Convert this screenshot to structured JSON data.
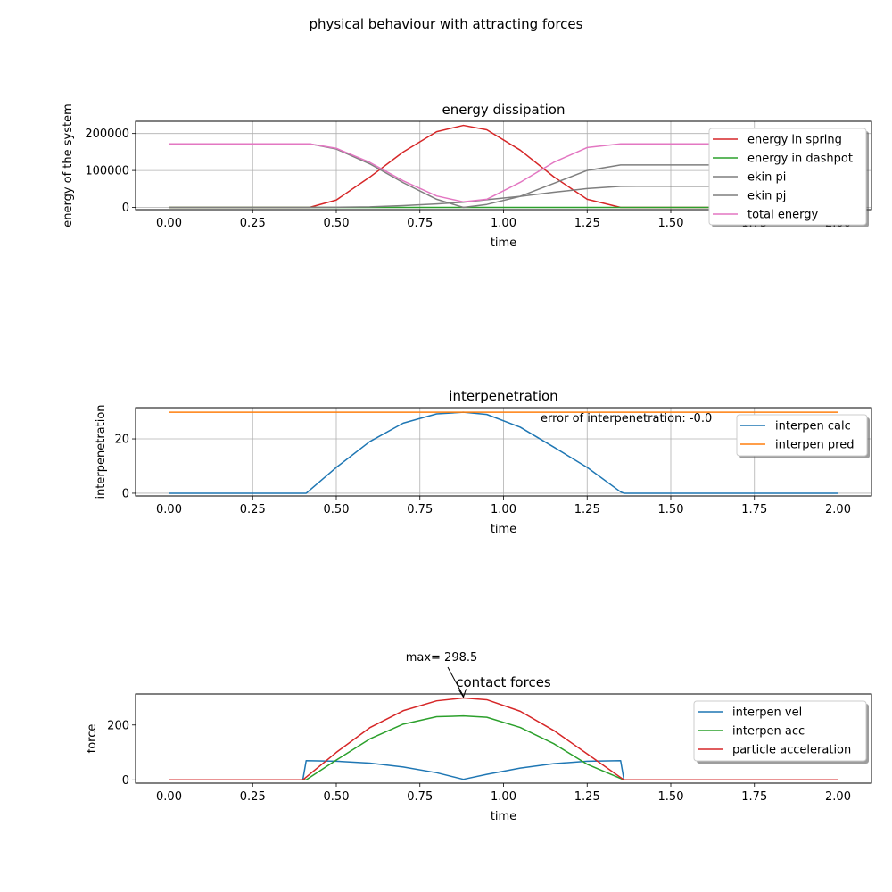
{
  "figure": {
    "title": "physical behaviour with attracting forces"
  },
  "chart_data": [
    {
      "type": "line",
      "title": "energy dissipation",
      "xlabel": "time",
      "ylabel": "energy of the system",
      "xlim": [
        -0.1,
        2.1
      ],
      "ylim": [
        -6000,
        233000
      ],
      "xticks": [
        0.0,
        0.25,
        0.5,
        0.75,
        1.0,
        1.25,
        1.5,
        1.75,
        2.0
      ],
      "xtick_labels": [
        "0.00",
        "0.25",
        "0.50",
        "0.75",
        "1.00",
        "1.25",
        "1.50",
        "1.75",
        "2.00"
      ],
      "yticks": [
        0,
        100000,
        200000
      ],
      "ytick_labels": [
        "0",
        "100000",
        "200000"
      ],
      "grid": true,
      "legend": "upper right",
      "series": [
        {
          "name": "energy in spring",
          "color": "#d62728",
          "x": [
            0,
            0.4,
            0.42,
            0.5,
            0.6,
            0.7,
            0.8,
            0.88,
            0.95,
            1.05,
            1.15,
            1.25,
            1.35,
            1.37,
            2.0
          ],
          "y": [
            0,
            0,
            0,
            20000,
            82000,
            150000,
            205000,
            222000,
            210000,
            155000,
            83000,
            22000,
            0,
            0,
            0
          ]
        },
        {
          "name": "energy in dashpot",
          "color": "#2ca02c",
          "x": [
            0,
            2.0
          ],
          "y": [
            0,
            0
          ]
        },
        {
          "name": "ekin pi",
          "color": "#7f7f7f",
          "x": [
            0,
            0.4,
            0.5,
            0.6,
            0.7,
            0.8,
            0.88,
            0.95,
            1.05,
            1.15,
            1.25,
            1.35,
            1.4,
            2.0
          ],
          "y": [
            0,
            0,
            400,
            1500,
            5000,
            9500,
            14000,
            21000,
            30000,
            41000,
            51000,
            57000,
            57500,
            57500
          ]
        },
        {
          "name": "ekin pj",
          "color": "#7f7f7f",
          "x": [
            0,
            0.42,
            0.5,
            0.6,
            0.7,
            0.8,
            0.88,
            0.95,
            1.05,
            1.15,
            1.25,
            1.35,
            1.4,
            2.0
          ],
          "y": [
            172000,
            172000,
            158000,
            118000,
            67000,
            22000,
            0,
            8000,
            30000,
            65000,
            100000,
            115000,
            115000,
            115000
          ]
        },
        {
          "name": "total energy",
          "color": "#e377c2",
          "x": [
            0,
            0.42,
            0.5,
            0.6,
            0.7,
            0.8,
            0.88,
            0.95,
            1.05,
            1.15,
            1.25,
            1.35,
            1.4,
            2.0
          ],
          "y": [
            172000,
            172000,
            160000,
            122000,
            72000,
            31000,
            15000,
            22000,
            68000,
            122000,
            162000,
            172000,
            172000,
            172000
          ]
        }
      ]
    },
    {
      "type": "line",
      "title": "interpenetration",
      "xlabel": "time",
      "ylabel": "interpenetration",
      "xlim": [
        -0.1,
        2.1
      ],
      "ylim": [
        -1.0,
        31.5
      ],
      "xticks": [
        0.0,
        0.25,
        0.5,
        0.75,
        1.0,
        1.25,
        1.5,
        1.75,
        2.0
      ],
      "xtick_labels": [
        "0.00",
        "0.25",
        "0.50",
        "0.75",
        "1.00",
        "1.25",
        "1.50",
        "1.75",
        "2.00"
      ],
      "yticks": [
        0,
        20
      ],
      "ytick_labels": [
        "0",
        "20"
      ],
      "grid": true,
      "legend": "center right",
      "annotation": "error of interpenetration: -0.0",
      "series": [
        {
          "name": "interpen calc",
          "color": "#1f77b4",
          "x": [
            0,
            0.41,
            0.5,
            0.6,
            0.7,
            0.8,
            0.88,
            0.95,
            1.05,
            1.15,
            1.25,
            1.35,
            1.36,
            2.0
          ],
          "y": [
            0,
            0,
            9.5,
            19.0,
            25.8,
            29.2,
            29.8,
            29.0,
            24.3,
            17.0,
            9.5,
            0.5,
            0,
            0
          ]
        },
        {
          "name": "interpen pred",
          "color": "#ff7f0e",
          "x": [
            0,
            2.0
          ],
          "y": [
            29.8,
            29.8
          ]
        }
      ]
    },
    {
      "type": "line",
      "title": "contact forces",
      "xlabel": "time",
      "ylabel": "force",
      "xlim": [
        -0.1,
        2.1
      ],
      "ylim": [
        -12,
        313
      ],
      "xticks": [
        0.0,
        0.25,
        0.5,
        0.75,
        1.0,
        1.25,
        1.5,
        1.75,
        2.0
      ],
      "xtick_labels": [
        "0.00",
        "0.25",
        "0.50",
        "0.75",
        "1.00",
        "1.25",
        "1.50",
        "1.75",
        "2.00"
      ],
      "yticks": [
        0,
        200
      ],
      "ytick_labels": [
        "0",
        "200"
      ],
      "grid": false,
      "legend": "upper right",
      "annotation": "max= 298.5",
      "annotation_point": [
        0.88,
        298.5
      ],
      "series": [
        {
          "name": "interpen vel",
          "color": "#1f77b4",
          "x": [
            0,
            0.4,
            0.41,
            0.5,
            0.6,
            0.7,
            0.8,
            0.88,
            0.95,
            1.05,
            1.15,
            1.25,
            1.35,
            1.36,
            2.0
          ],
          "y": [
            0,
            0,
            70,
            68,
            61,
            47,
            26,
            2,
            20,
            43,
            59,
            68,
            70,
            0,
            0
          ]
        },
        {
          "name": "interpen acc",
          "color": "#2ca02c",
          "x": [
            0,
            0.41,
            0.5,
            0.6,
            0.7,
            0.8,
            0.88,
            0.95,
            1.05,
            1.15,
            1.25,
            1.36,
            2.0
          ],
          "y": [
            0,
            0,
            72,
            149,
            203,
            230,
            233,
            228,
            191,
            132,
            57,
            0,
            0
          ]
        },
        {
          "name": "particle acceleration",
          "color": "#d62728",
          "x": [
            0,
            0.4,
            0.5,
            0.6,
            0.7,
            0.8,
            0.88,
            0.95,
            1.05,
            1.15,
            1.25,
            1.36,
            2.0
          ],
          "y": [
            0,
            0,
            100,
            190,
            252,
            288,
            298.5,
            292,
            250,
            180,
            95,
            0,
            0
          ]
        }
      ]
    }
  ]
}
